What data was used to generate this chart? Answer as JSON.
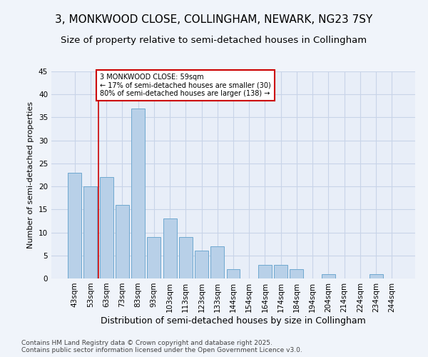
{
  "title": "3, MONKWOOD CLOSE, COLLINGHAM, NEWARK, NG23 7SY",
  "subtitle": "Size of property relative to semi-detached houses in Collingham",
  "xlabel": "Distribution of semi-detached houses by size in Collingham",
  "ylabel": "Number of semi-detached properties",
  "categories": [
    "43sqm",
    "53sqm",
    "63sqm",
    "73sqm",
    "83sqm",
    "93sqm",
    "103sqm",
    "113sqm",
    "123sqm",
    "133sqm",
    "144sqm",
    "154sqm",
    "164sqm",
    "174sqm",
    "184sqm",
    "194sqm",
    "204sqm",
    "214sqm",
    "224sqm",
    "234sqm",
    "244sqm"
  ],
  "values": [
    23,
    20,
    22,
    16,
    37,
    9,
    13,
    9,
    6,
    7,
    2,
    0,
    3,
    3,
    2,
    0,
    1,
    0,
    0,
    1,
    0
  ],
  "bar_color": "#b8d0e8",
  "bar_edge_color": "#6fa8d0",
  "background_color": "#f0f4fa",
  "plot_bg_color": "#e8eef8",
  "grid_color": "#c8d4e8",
  "annotation_text": "3 MONKWOOD CLOSE: 59sqm\n← 17% of semi-detached houses are smaller (30)\n80% of semi-detached houses are larger (138) →",
  "annotation_box_color": "#ffffff",
  "annotation_box_edge_color": "#cc0000",
  "vline_color": "#cc0000",
  "ylim": [
    0,
    45
  ],
  "yticks": [
    0,
    5,
    10,
    15,
    20,
    25,
    30,
    35,
    40,
    45
  ],
  "footer_text": "Contains HM Land Registry data © Crown copyright and database right 2025.\nContains public sector information licensed under the Open Government Licence v3.0.",
  "title_fontsize": 11,
  "subtitle_fontsize": 9.5,
  "xlabel_fontsize": 9,
  "ylabel_fontsize": 8,
  "tick_fontsize": 7.5,
  "footer_fontsize": 6.5
}
